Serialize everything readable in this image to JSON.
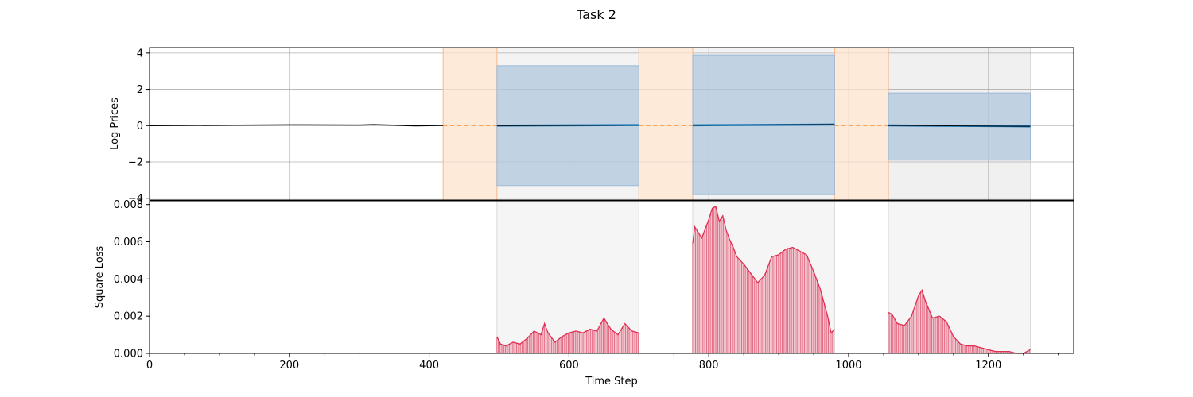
{
  "figure": {
    "title": "Task 2"
  },
  "chart_data": [
    {
      "type": "line",
      "panel": "top",
      "ylabel": "Log Prices",
      "xlim": [
        0,
        1322
      ],
      "ylim": [
        -4.1,
        4.3
      ],
      "yticks": [
        -4,
        -2,
        0,
        2,
        4
      ],
      "ytick_labels": [
        "−4",
        "−2",
        "0",
        "2",
        "4"
      ],
      "grid": true,
      "colors": {
        "price": "#000000",
        "forecast": "#1f77b4",
        "interval": "#b0c8dc",
        "gap": "#fde3cc",
        "gap_line": "#ff9f4a",
        "shade": "#f0f0f0"
      },
      "price_series": [
        {
          "x": 0,
          "y": 0.0
        },
        {
          "x": 100,
          "y": 0.02
        },
        {
          "x": 200,
          "y": 0.04
        },
        {
          "x": 300,
          "y": 0.03
        },
        {
          "x": 320,
          "y": 0.05
        },
        {
          "x": 380,
          "y": -0.01
        },
        {
          "x": 420,
          "y": 0.01
        }
      ],
      "gap_segments": [
        {
          "x0": 420,
          "x1": 497,
          "y": 0.0
        },
        {
          "x0": 700,
          "x1": 777,
          "y": 0.0
        },
        {
          "x0": 980,
          "x1": 1057,
          "y": 0.0
        }
      ],
      "forecast_windows": [
        {
          "x0": 497,
          "x1": 700,
          "lower": -3.3,
          "upper": 3.3,
          "y_start": 0.0,
          "y_end": 0.03
        },
        {
          "x0": 777,
          "x1": 980,
          "lower": -3.8,
          "upper": 3.9,
          "y_start": 0.02,
          "y_end": 0.06
        },
        {
          "x0": 1057,
          "x1": 1260,
          "lower": -1.9,
          "upper": 1.8,
          "y_start": 0.01,
          "y_end": -0.04
        }
      ]
    },
    {
      "type": "bar",
      "panel": "bottom",
      "xlabel": "Time Step",
      "ylabel": "Square Loss",
      "xlim": [
        0,
        1322
      ],
      "ylim": [
        0,
        0.0082
      ],
      "xticks": [
        0,
        200,
        400,
        600,
        800,
        1000,
        1200
      ],
      "xtick_labels": [
        "0",
        "200",
        "400",
        "600",
        "800",
        "1000",
        "1200"
      ],
      "yticks": [
        0,
        0.002,
        0.004,
        0.006,
        0.008
      ],
      "ytick_labels": [
        "0.000",
        "0.002",
        "0.004",
        "0.006",
        "0.008"
      ],
      "colors": {
        "loss": "#dc143c",
        "shade": "#f5f5f5"
      },
      "windows": [
        {
          "x0": 497,
          "x1": 700,
          "points": [
            [
              497,
              0.0009
            ],
            [
              502,
              0.0005
            ],
            [
              510,
              0.0004
            ],
            [
              520,
              0.0006
            ],
            [
              530,
              0.0005
            ],
            [
              540,
              0.0008
            ],
            [
              550,
              0.0012
            ],
            [
              560,
              0.001
            ],
            [
              565,
              0.0016
            ],
            [
              570,
              0.0011
            ],
            [
              580,
              0.0006
            ],
            [
              590,
              0.0009
            ],
            [
              600,
              0.0011
            ],
            [
              610,
              0.0012
            ],
            [
              620,
              0.0011
            ],
            [
              630,
              0.0013
            ],
            [
              640,
              0.0012
            ],
            [
              650,
              0.0019
            ],
            [
              660,
              0.0013
            ],
            [
              670,
              0.001
            ],
            [
              680,
              0.0016
            ],
            [
              690,
              0.0012
            ],
            [
              700,
              0.0011
            ]
          ]
        },
        {
          "x0": 777,
          "x1": 980,
          "points": [
            [
              777,
              0.0059
            ],
            [
              780,
              0.0068
            ],
            [
              785,
              0.0065
            ],
            [
              790,
              0.0062
            ],
            [
              795,
              0.0067
            ],
            [
              800,
              0.0072
            ],
            [
              805,
              0.0078
            ],
            [
              810,
              0.0079
            ],
            [
              815,
              0.0071
            ],
            [
              820,
              0.0074
            ],
            [
              825,
              0.0066
            ],
            [
              830,
              0.0061
            ],
            [
              835,
              0.0057
            ],
            [
              840,
              0.0052
            ],
            [
              850,
              0.0048
            ],
            [
              860,
              0.0043
            ],
            [
              870,
              0.0038
            ],
            [
              880,
              0.0042
            ],
            [
              890,
              0.0052
            ],
            [
              900,
              0.0053
            ],
            [
              910,
              0.0056
            ],
            [
              920,
              0.0057
            ],
            [
              930,
              0.0055
            ],
            [
              940,
              0.0053
            ],
            [
              950,
              0.0044
            ],
            [
              960,
              0.0034
            ],
            [
              970,
              0.002
            ],
            [
              975,
              0.0011
            ],
            [
              980,
              0.0013
            ]
          ]
        },
        {
          "x0": 1057,
          "x1": 1260,
          "points": [
            [
              1057,
              0.0022
            ],
            [
              1062,
              0.0021
            ],
            [
              1070,
              0.0016
            ],
            [
              1080,
              0.0015
            ],
            [
              1090,
              0.002
            ],
            [
              1100,
              0.0031
            ],
            [
              1105,
              0.0034
            ],
            [
              1110,
              0.0028
            ],
            [
              1120,
              0.0019
            ],
            [
              1130,
              0.002
            ],
            [
              1140,
              0.0017
            ],
            [
              1150,
              0.0009
            ],
            [
              1160,
              0.0005
            ],
            [
              1170,
              0.0004
            ],
            [
              1180,
              0.0004
            ],
            [
              1190,
              0.0003
            ],
            [
              1200,
              0.0002
            ],
            [
              1210,
              0.0001
            ],
            [
              1220,
              0.0001
            ],
            [
              1230,
              0.0001
            ],
            [
              1240,
              0.0
            ],
            [
              1250,
              0.0
            ],
            [
              1255,
              0.0001
            ],
            [
              1260,
              0.0002
            ]
          ]
        }
      ]
    }
  ]
}
